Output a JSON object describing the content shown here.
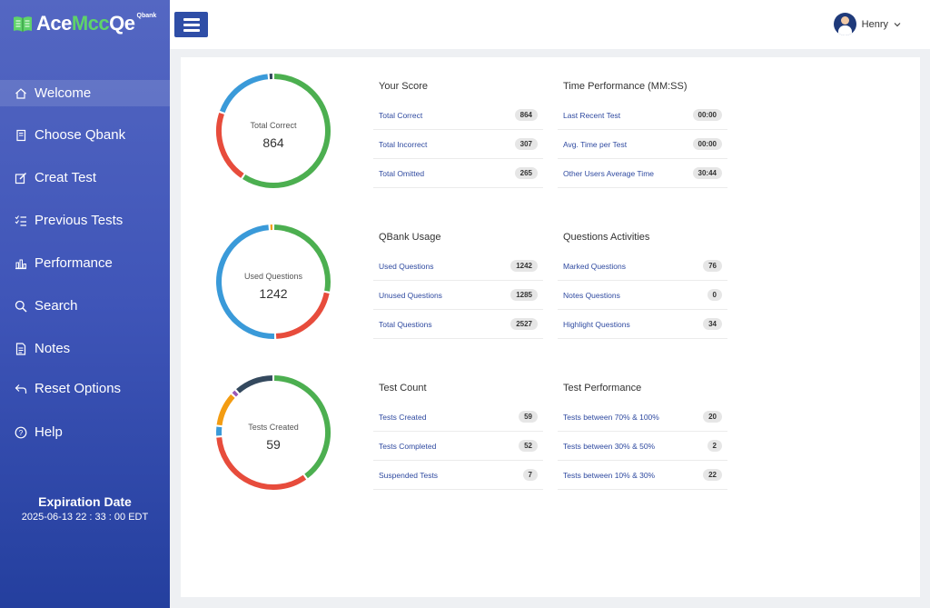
{
  "brand": {
    "name_part1": "Ace",
    "name_part2": "Mcc",
    "name_part3": "Qe",
    "sup": "Qbank"
  },
  "sidebar": {
    "items": [
      {
        "label": "Welcome",
        "icon": "home-icon",
        "active": true
      },
      {
        "label": "Choose Qbank",
        "icon": "book-icon",
        "active": false
      },
      {
        "label": "Creat Test",
        "icon": "edit-icon",
        "active": false
      },
      {
        "label": "Previous Tests",
        "icon": "checklist-icon",
        "active": false
      },
      {
        "label": "Performance",
        "icon": "bar-chart-icon",
        "active": false
      },
      {
        "label": "Search",
        "icon": "search-icon",
        "active": false
      },
      {
        "label": "Notes",
        "icon": "note-icon",
        "active": false
      },
      {
        "label": "Reset Options",
        "icon": "reset-icon",
        "active": false
      },
      {
        "label": "Help",
        "icon": "help-icon",
        "active": false
      }
    ],
    "expiry_title": "Expiration Date",
    "expiry_date": "2025-06-13 22 : 33 : 00 EDT"
  },
  "header": {
    "user_name": "Henry"
  },
  "colors": {
    "green": "#4caf50",
    "red": "#e74c3c",
    "blue": "#3a9ad9",
    "dark": "#34495e",
    "orange": "#f39c12",
    "purple": "#9b59b6"
  },
  "donuts": [
    {
      "label": "Total Correct",
      "value": "864",
      "segments": [
        {
          "value": 864,
          "color": "#4caf50"
        },
        {
          "value": 307,
          "color": "#e74c3c"
        },
        {
          "value": 265,
          "color": "#3a9ad9"
        },
        {
          "value": 20,
          "color": "#34495e"
        }
      ]
    },
    {
      "label": "Used Questions",
      "value": "1242",
      "segments": [
        {
          "value": 1242,
          "color": "#4caf50"
        },
        {
          "value": 950,
          "color": "#e74c3c"
        },
        {
          "value": 2190,
          "color": "#3a9ad9"
        },
        {
          "value": 50,
          "color": "#f39c12"
        }
      ]
    },
    {
      "label": "Tests Created",
      "value": "59",
      "segments": [
        {
          "value": 52,
          "color": "#4caf50"
        },
        {
          "value": 44,
          "color": "#e74c3c"
        },
        {
          "value": 4,
          "color": "#3a9ad9"
        },
        {
          "value": 13,
          "color": "#f39c12"
        },
        {
          "value": 2,
          "color": "#9b59b6"
        },
        {
          "value": 15,
          "color": "#34495e"
        }
      ]
    }
  ],
  "stats": [
    {
      "title": "Your Score",
      "rows": [
        {
          "name": "Total Correct",
          "value": "864"
        },
        {
          "name": "Total Incorrect",
          "value": "307"
        },
        {
          "name": "Total Omitted",
          "value": "265"
        }
      ]
    },
    {
      "title": "Time Performance (MM:SS)",
      "rows": [
        {
          "name": "Last Recent Test",
          "value": "00:00"
        },
        {
          "name": "Avg. Time per Test",
          "value": "00:00"
        },
        {
          "name": "Other Users Average Time",
          "value": "30:44"
        }
      ]
    },
    {
      "title": "QBank Usage",
      "rows": [
        {
          "name": "Used Questions",
          "value": "1242"
        },
        {
          "name": "Unused Questions",
          "value": "1285"
        },
        {
          "name": "Total Questions",
          "value": "2527"
        }
      ]
    },
    {
      "title": "Questions Activities",
      "rows": [
        {
          "name": "Marked Questions",
          "value": "76"
        },
        {
          "name": "Notes Questions",
          "value": "0"
        },
        {
          "name": "Highlight Questions",
          "value": "34"
        }
      ]
    },
    {
      "title": "Test Count",
      "rows": [
        {
          "name": "Tests Created",
          "value": "59"
        },
        {
          "name": "Tests Completed",
          "value": "52"
        },
        {
          "name": "Suspended Tests",
          "value": "7"
        }
      ]
    },
    {
      "title": "Test Performance",
      "rows": [
        {
          "name": "Tests between 70% & 100%",
          "value": "20"
        },
        {
          "name": "Tests between 30% & 50%",
          "value": "2"
        },
        {
          "name": "Tests between 10% & 30%",
          "value": "22"
        }
      ]
    }
  ]
}
